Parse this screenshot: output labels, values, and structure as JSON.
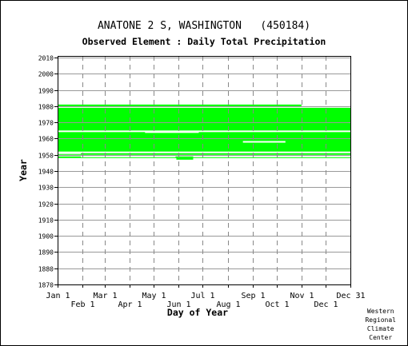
{
  "chart_data": {
    "type": "bar",
    "title": "ANATONE 2 S, WASHINGTON   (450184)",
    "subtitle": "Observed Element : Daily Total Precipitation",
    "xlabel": "Day of Year",
    "ylabel": "Year",
    "xlim": [
      1,
      366
    ],
    "ylim": [
      1870,
      2011
    ],
    "grid": true,
    "bar_color": "#00ff00",
    "y_ticks": [
      1870,
      1880,
      1890,
      1900,
      1910,
      1920,
      1930,
      1940,
      1950,
      1960,
      1970,
      1980,
      1990,
      2000,
      2010
    ],
    "x_ticks": [
      {
        "day": 1,
        "label": "Jan 1",
        "row": 0
      },
      {
        "day": 32,
        "label": "Feb 1",
        "row": 1
      },
      {
        "day": 60,
        "label": "Mar 1",
        "row": 0
      },
      {
        "day": 91,
        "label": "Apr 1",
        "row": 1
      },
      {
        "day": 121,
        "label": "May 1",
        "row": 0
      },
      {
        "day": 152,
        "label": "Jun 1",
        "row": 1
      },
      {
        "day": 182,
        "label": "Jul 1",
        "row": 0
      },
      {
        "day": 213,
        "label": "Aug 1",
        "row": 1
      },
      {
        "day": 244,
        "label": "Sep 1",
        "row": 0
      },
      {
        "day": 274,
        "label": "Oct 1",
        "row": 1
      },
      {
        "day": 305,
        "label": "Nov 1",
        "row": 0
      },
      {
        "day": 335,
        "label": "Dec 1",
        "row": 1
      },
      {
        "day": 366,
        "label": "Dec 31",
        "row": 0
      }
    ],
    "bands": [
      {
        "start_day": 1,
        "end_day": 366,
        "start_year": 1948,
        "end_year": 1949
      },
      {
        "start_day": 1,
        "end_day": 366,
        "start_year": 1950,
        "end_year": 1951
      },
      {
        "start_day": 1,
        "end_day": 366,
        "start_year": 1952,
        "end_year": 1964
      },
      {
        "start_day": 1,
        "end_day": 366,
        "start_year": 1965,
        "end_year": 1979
      },
      {
        "start_day": 1,
        "end_day": 305,
        "start_year": 1980,
        "end_year": 1981
      },
      {
        "start_day": 149,
        "end_day": 170,
        "start_year": 1947,
        "end_year": 1948
      }
    ],
    "gaps": [
      {
        "start_day": 1,
        "end_day": 30,
        "year": 1951
      },
      {
        "start_day": 30,
        "end_day": 148,
        "year": 1949
      },
      {
        "start_day": 170,
        "end_day": 366,
        "year": 1949
      },
      {
        "start_day": 110,
        "end_day": 177,
        "year": 1964
      },
      {
        "start_day": 232,
        "end_day": 285,
        "year": 1958
      }
    ]
  },
  "credit": "Western\nRegional\nClimate\nCenter"
}
